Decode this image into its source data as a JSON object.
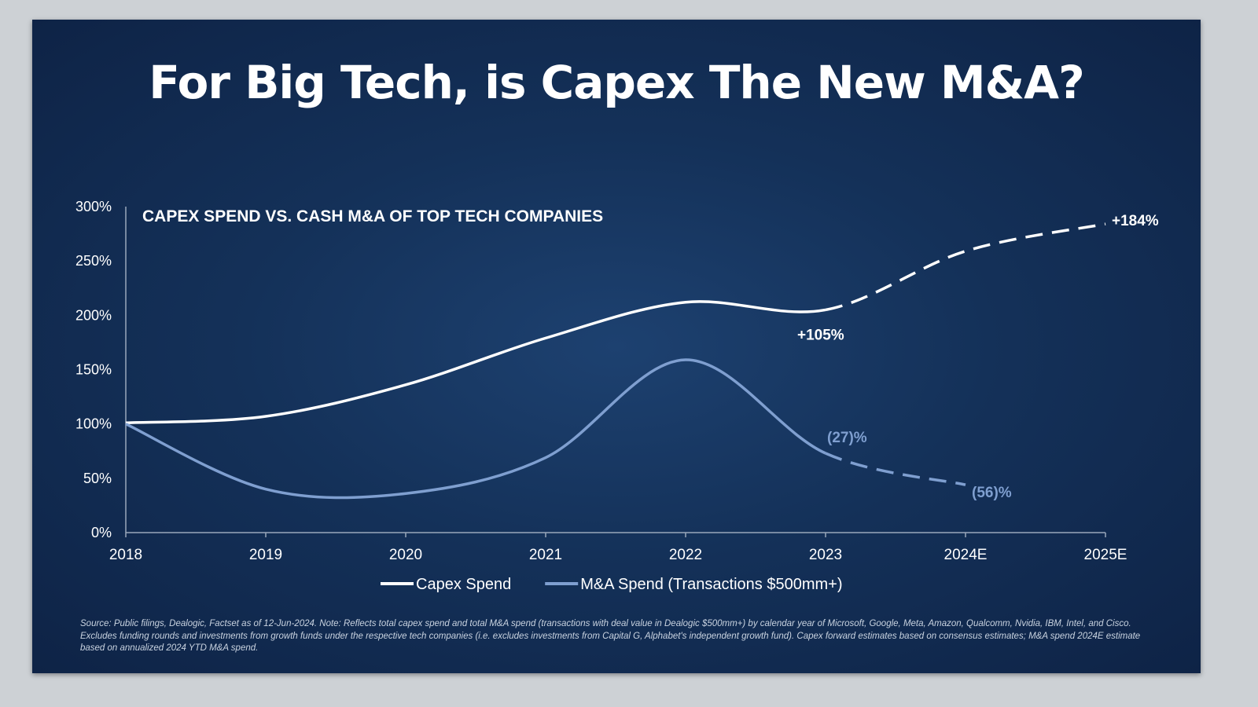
{
  "title": "For Big Tech, is Capex The New M&A?",
  "chart_data": {
    "type": "line",
    "title": "CAPEX SPEND VS. CASH M&A OF TOP TECH COMPANIES",
    "categories": [
      "2018",
      "2019",
      "2020",
      "2021",
      "2022",
      "2023",
      "2024E",
      "2025E"
    ],
    "ylim": [
      0,
      300
    ],
    "yticks": [
      "0%",
      "50%",
      "100%",
      "150%",
      "200%",
      "250%",
      "300%"
    ],
    "ytick_values": [
      0,
      50,
      100,
      150,
      200,
      250,
      300
    ],
    "grid": false,
    "legend_placement": "bottom",
    "series": [
      {
        "name": "Capex Spend",
        "color": "#ffffff",
        "values": [
          101,
          107,
          136,
          179,
          212,
          205,
          259,
          284
        ],
        "estimate_from": "2023"
      },
      {
        "name": "M&A Spend (Transactions $500mm+)",
        "color": "#7f9fd0",
        "values": [
          100,
          40,
          36,
          69,
          159,
          73,
          44,
          null
        ],
        "estimate_from": "2023"
      }
    ],
    "annotations": [
      {
        "text": "+105%",
        "series": "Capex Spend",
        "x": "2023",
        "color": "#ffffff"
      },
      {
        "text": "+184%",
        "series": "Capex Spend",
        "x": "2025E",
        "color": "#ffffff"
      },
      {
        "text": "(27)%",
        "series": "M&A Spend (Transactions $500mm+)",
        "x": "2023",
        "color": "#7f9fd0"
      },
      {
        "text": "(56)%",
        "series": "M&A Spend (Transactions $500mm+)",
        "x": "2024E",
        "color": "#7f9fd0"
      }
    ]
  },
  "footnote": "Source: Public filings, Dealogic, Factset as of 12-Jun-2024. Note: Reflects total capex spend and total M&A spend (transactions with deal value in Dealogic $500mm+) by calendar year of Microsoft, Google, Meta, Amazon, Qualcomm, Nvidia, IBM, Intel, and Cisco. Excludes funding rounds and investments from growth funds under the respective tech companies (i.e. excludes investments from Capital G, Alphabet's independent growth fund). Capex forward estimates based on consensus estimates; M&A spend 2024E estimate based on annualized 2024 YTD M&A spend."
}
